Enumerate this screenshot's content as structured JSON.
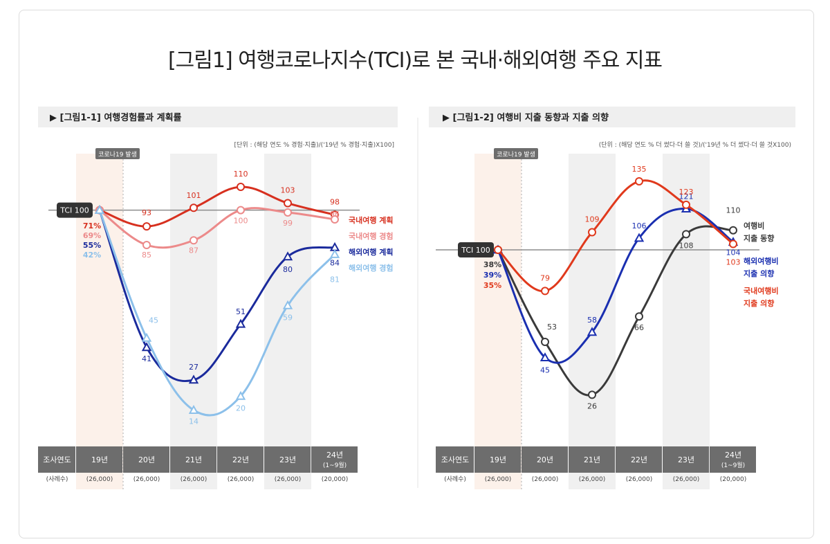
{
  "title": "[그림1] 여행코로나지수(TCI)로 본 국내·해외여행 주요 지표",
  "chart_data": [
    {
      "type": "line",
      "title": "▶ [그림1-1] 여행경험률과 계획률",
      "unit_note": "[단위 : (해당 연도 % 경험·지출)/('19년 % 경험·지출)X100]",
      "covid_label": "코로나19 발생",
      "baseline_label": "TCI 100",
      "baseline_value": 100,
      "row_header": "조사연도",
      "sample_header": "(사례수)",
      "categories": [
        "19년",
        "20년",
        "21년",
        "22년",
        "23년",
        "24년"
      ],
      "category_sub": [
        "",
        "",
        "",
        "",
        "",
        "(1~9월)"
      ],
      "sample_sizes": [
        "(26,000)",
        "(26,000)",
        "(26,000)",
        "(26,000)",
        "(26,000)",
        "(20,000)"
      ],
      "ylim": [
        0,
        120
      ],
      "series": [
        {
          "name": "국내여행 계획",
          "color": "#d7301f",
          "marker": "circle",
          "base_pct": "71%",
          "values": [
            100,
            93,
            101,
            110,
            103,
            98
          ],
          "labels": [
            "",
            "93",
            "101",
            "110",
            "103",
            "98"
          ]
        },
        {
          "name": "국내여행 경험",
          "color": "#ec8a8a",
          "marker": "circle",
          "base_pct": "69%",
          "values": [
            100,
            85,
            87,
            100,
            99,
            96
          ],
          "labels": [
            "",
            "85",
            "87",
            "100",
            "99",
            "96"
          ]
        },
        {
          "name": "해외여행 계획",
          "color": "#1a2a9c",
          "marker": "triangle",
          "base_pct": "55%",
          "values": [
            100,
            41,
            27,
            51,
            80,
            84
          ],
          "labels": [
            "",
            "41",
            "27",
            "51",
            "80",
            "84"
          ]
        },
        {
          "name": "해외여행 경험",
          "color": "#8cc0ea",
          "marker": "triangle",
          "base_pct": "42%",
          "values": [
            100,
            45,
            14,
            20,
            59,
            81
          ],
          "labels": [
            "",
            "45",
            "14",
            "20",
            "59",
            "81"
          ]
        }
      ]
    },
    {
      "type": "line",
      "title": "▶ [그림1-2] 여행비 지출 동향과 지출 의향",
      "unit_note": "(단위 : (해당 연도 % 더 썼다·더 쓸 것)/('19년 % 더 썼다·더 쓸 것X100)",
      "covid_label": "코로나19 발생",
      "baseline_label": "TCI 100",
      "baseline_value": 100,
      "row_header": "조사연도",
      "sample_header": "(사례수)",
      "categories": [
        "19년",
        "20년",
        "21년",
        "22년",
        "23년",
        "24년"
      ],
      "category_sub": [
        "",
        "",
        "",
        "",
        "",
        "(1~9월)"
      ],
      "sample_sizes": [
        "(26,000)",
        "(26,000)",
        "(26,000)",
        "(26,000)",
        "(26,000)",
        "(20,000)"
      ],
      "ylim": [
        0,
        140
      ],
      "series": [
        {
          "name": "여행비 지출 동향",
          "name_lines": [
            "여행비",
            "지출 동향"
          ],
          "color": "#3a3a3a",
          "marker": "circle",
          "base_pct": "38%",
          "values": [
            100,
            53,
            26,
            66,
            108,
            110
          ],
          "labels": [
            "",
            "53",
            "26",
            "66",
            "108",
            "110"
          ]
        },
        {
          "name": "해외여행비 지출 의향",
          "name_lines": [
            "해외여행비",
            "지출 의향"
          ],
          "color": "#1a2fb0",
          "marker": "triangle",
          "base_pct": "39%",
          "values": [
            100,
            45,
            58,
            106,
            121,
            104
          ],
          "labels": [
            "",
            "45",
            "58",
            "106",
            "121",
            "104"
          ]
        },
        {
          "name": "국내여행비 지출 의향",
          "name_lines": [
            "국내여행비",
            "지출 의향"
          ],
          "color": "#e0391c",
          "marker": "circle",
          "base_pct": "35%",
          "values": [
            100,
            79,
            109,
            135,
            123,
            103
          ],
          "labels": [
            "",
            "79",
            "109",
            "135",
            "123",
            "103"
          ]
        }
      ]
    }
  ]
}
